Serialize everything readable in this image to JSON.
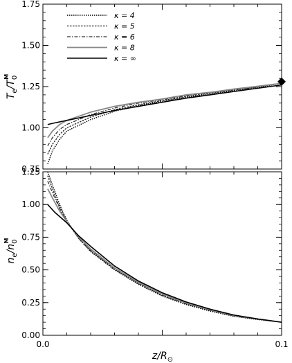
{
  "chart_data": [
    {
      "type": "line",
      "ylabel": "T_e/T_0^M",
      "ylabel_main": "T",
      "ylabel_sub1": "e",
      "ylabel_mid": "/T",
      "ylabel_sub2": "0",
      "ylabel_sup2": "M",
      "xlim": [
        0.0,
        0.1
      ],
      "ylim": [
        0.75,
        1.75
      ],
      "yticks": [
        "0.75",
        "1.00",
        "1.25",
        "1.50",
        "1.75"
      ],
      "ytick_values": [
        0.75,
        1.0,
        1.25,
        1.5,
        1.75
      ],
      "grid": false,
      "legend_position": "top-left",
      "series": [
        {
          "name": "κ = 4",
          "color": "#000000",
          "dash": "1.5,1.5",
          "width": 1.4,
          "x": [
            0.002,
            0.004,
            0.007,
            0.01,
            0.02,
            0.03,
            0.04,
            0.05,
            0.06,
            0.07,
            0.08,
            0.09,
            0.1
          ],
          "y": [
            0.78,
            0.86,
            0.93,
            0.98,
            1.05,
            1.1,
            1.135,
            1.16,
            1.185,
            1.205,
            1.225,
            1.245,
            1.27
          ]
        },
        {
          "name": "κ = 5",
          "color": "#222222",
          "dash": "2.5,1.5",
          "width": 1.3,
          "x": [
            0.002,
            0.004,
            0.007,
            0.01,
            0.02,
            0.03,
            0.04,
            0.05,
            0.06,
            0.07,
            0.08,
            0.09,
            0.1
          ],
          "y": [
            0.84,
            0.9,
            0.96,
            1.0,
            1.065,
            1.11,
            1.14,
            1.165,
            1.19,
            1.21,
            1.228,
            1.248,
            1.27
          ]
        },
        {
          "name": "κ = 6",
          "color": "#333333",
          "dash": "5,2,1.5,2",
          "width": 1.3,
          "x": [
            0.002,
            0.004,
            0.007,
            0.01,
            0.02,
            0.03,
            0.04,
            0.05,
            0.06,
            0.07,
            0.08,
            0.09,
            0.1
          ],
          "y": [
            0.89,
            0.94,
            0.99,
            1.02,
            1.08,
            1.12,
            1.15,
            1.17,
            1.195,
            1.213,
            1.232,
            1.25,
            1.27
          ]
        },
        {
          "name": "κ = 8",
          "color": "#888888",
          "dash": "",
          "width": 1.8,
          "x": [
            0.002,
            0.004,
            0.007,
            0.01,
            0.02,
            0.03,
            0.04,
            0.05,
            0.06,
            0.07,
            0.08,
            0.09,
            0.1
          ],
          "y": [
            0.94,
            0.98,
            1.02,
            1.045,
            1.095,
            1.13,
            1.155,
            1.175,
            1.2,
            1.215,
            1.235,
            1.252,
            1.27
          ]
        },
        {
          "name": "κ = ∞",
          "color": "#000000",
          "dash": "",
          "width": 1.6,
          "x": [
            0.002,
            0.005,
            0.01,
            0.02,
            0.03,
            0.04,
            0.05,
            0.06,
            0.07,
            0.08,
            0.09,
            0.1
          ],
          "y": [
            1.02,
            1.03,
            1.045,
            1.075,
            1.105,
            1.13,
            1.155,
            1.18,
            1.2,
            1.22,
            1.24,
            1.26
          ]
        }
      ],
      "marker": {
        "x": 0.1,
        "y": 1.28,
        "shape": "diamond"
      }
    },
    {
      "type": "line",
      "ylabel": "n_e/n_0^M",
      "ylabel_main": "n",
      "ylabel_sub1": "e",
      "ylabel_mid": "/n",
      "ylabel_sub2": "0",
      "ylabel_sup2": "M",
      "xlabel": "z/R_⊙",
      "xlabel_main": "z/R",
      "xlabel_sub": "⊙",
      "xlim": [
        0.0,
        0.1
      ],
      "ylim": [
        0.0,
        1.25
      ],
      "xticks": [
        "0.0",
        "0.1"
      ],
      "xtick_values": [
        0.0,
        0.1
      ],
      "yticks": [
        "0.00",
        "0.25",
        "0.50",
        "0.75",
        "1.00",
        "1.25"
      ],
      "ytick_values": [
        0.0,
        0.25,
        0.5,
        0.75,
        1.0,
        1.25
      ],
      "grid": false,
      "series": [
        {
          "name": "κ = 4",
          "color": "#000000",
          "dash": "1.5,1.5",
          "width": 1.4,
          "x": [
            0.002,
            0.004,
            0.007,
            0.01,
            0.015,
            0.02,
            0.03,
            0.04,
            0.05,
            0.06,
            0.07,
            0.08,
            0.09,
            0.1
          ],
          "y": [
            1.25,
            1.15,
            1.0,
            0.88,
            0.74,
            0.64,
            0.5,
            0.39,
            0.3,
            0.235,
            0.185,
            0.145,
            0.12,
            0.1
          ]
        },
        {
          "name": "κ = 5",
          "color": "#222222",
          "dash": "2.5,1.5",
          "width": 1.3,
          "x": [
            0.002,
            0.004,
            0.007,
            0.01,
            0.015,
            0.02,
            0.03,
            0.04,
            0.05,
            0.06,
            0.07,
            0.08,
            0.09,
            0.1
          ],
          "y": [
            1.22,
            1.12,
            0.98,
            0.87,
            0.74,
            0.645,
            0.505,
            0.395,
            0.305,
            0.24,
            0.19,
            0.148,
            0.122,
            0.1
          ]
        },
        {
          "name": "κ = 6",
          "color": "#333333",
          "dash": "5,2,1.5,2",
          "width": 1.3,
          "x": [
            0.002,
            0.004,
            0.007,
            0.01,
            0.015,
            0.02,
            0.03,
            0.04,
            0.05,
            0.06,
            0.07,
            0.08,
            0.09,
            0.1
          ],
          "y": [
            1.18,
            1.09,
            0.97,
            0.87,
            0.745,
            0.65,
            0.51,
            0.4,
            0.31,
            0.243,
            0.192,
            0.15,
            0.123,
            0.1
          ]
        },
        {
          "name": "κ = 8",
          "color": "#888888",
          "dash": "",
          "width": 1.8,
          "x": [
            0.002,
            0.004,
            0.007,
            0.01,
            0.015,
            0.02,
            0.03,
            0.04,
            0.05,
            0.06,
            0.07,
            0.08,
            0.09,
            0.1
          ],
          "y": [
            1.12,
            1.05,
            0.95,
            0.87,
            0.75,
            0.66,
            0.515,
            0.405,
            0.315,
            0.247,
            0.195,
            0.152,
            0.124,
            0.1
          ]
        },
        {
          "name": "κ = ∞",
          "color": "#000000",
          "dash": "",
          "width": 1.6,
          "x": [
            0.002,
            0.005,
            0.01,
            0.015,
            0.02,
            0.03,
            0.04,
            0.05,
            0.06,
            0.07,
            0.08,
            0.09,
            0.1
          ],
          "y": [
            1.0,
            0.94,
            0.86,
            0.76,
            0.68,
            0.53,
            0.415,
            0.325,
            0.255,
            0.2,
            0.155,
            0.125,
            0.1
          ]
        }
      ]
    }
  ]
}
